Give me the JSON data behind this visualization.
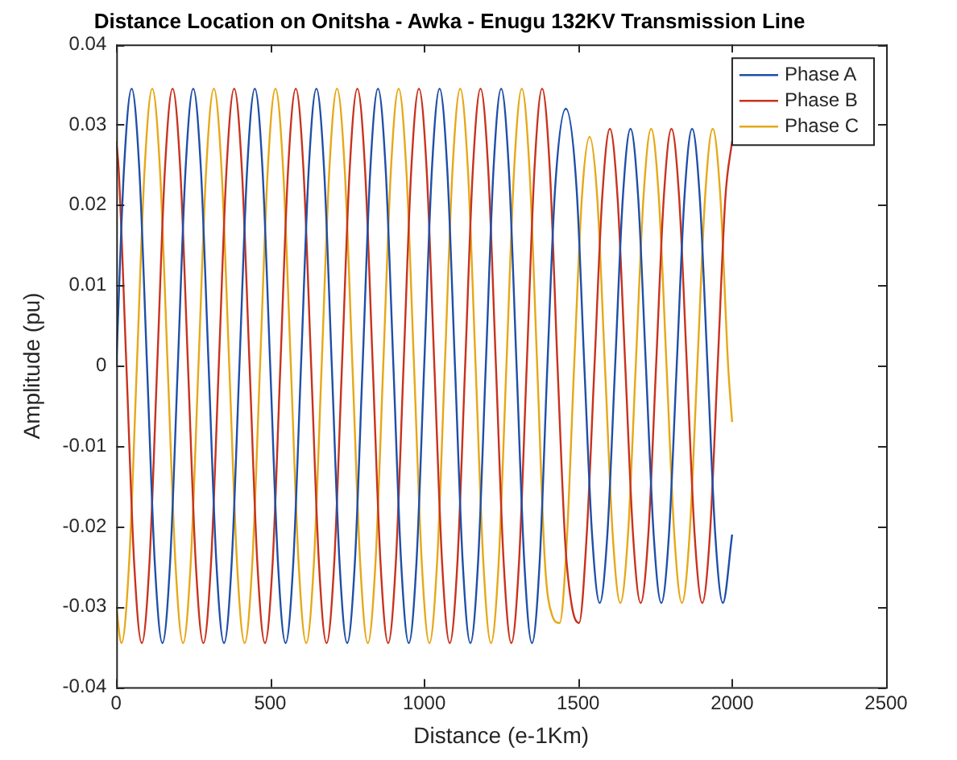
{
  "chart_data": {
    "type": "line",
    "title": "Distance Location on Onitsha - Awka - Enugu 132KV Transmission Line",
    "xlabel": "Distance (e-1Km)",
    "ylabel": "Amplitude (pu)",
    "xlim": [
      0,
      2500
    ],
    "xticks": [
      0,
      500,
      1000,
      1500,
      2000,
      2500
    ],
    "ylim": [
      -0.04,
      0.04
    ],
    "yticks": [
      -0.04,
      -0.03,
      -0.02,
      -0.01,
      0,
      0.01,
      0.02,
      0.03,
      0.04
    ],
    "grid": false,
    "legend": "top right",
    "series": [
      {
        "name": "Phase A",
        "color": "#1f4fa8",
        "x": [
          0,
          25,
          50,
          75,
          100,
          125,
          150,
          175,
          200,
          225,
          250,
          275,
          300,
          325,
          350,
          375,
          400,
          425,
          450,
          475,
          500,
          525,
          550,
          575,
          600,
          625,
          650,
          675,
          700,
          725,
          750,
          775,
          800,
          825,
          850,
          875,
          900,
          925,
          950,
          975,
          1000,
          1025,
          1050,
          1075,
          1100,
          1125,
          1150,
          1175,
          1200,
          1225,
          1250,
          1275,
          1300,
          1325,
          1350,
          1375,
          1400,
          1425,
          1460,
          1495,
          1520,
          1545,
          1570,
          1595,
          1620,
          1645,
          1670,
          1695,
          1720,
          1745,
          1770,
          1795,
          1820,
          1845,
          1870,
          1895,
          1920,
          1945,
          1970,
          2000
        ],
        "values": [
          0,
          0.0244,
          0.0345,
          0.0244,
          0,
          -0.0244,
          -0.0345,
          -0.0244,
          0,
          0.0244,
          0.0345,
          0.0244,
          0,
          -0.0244,
          -0.0345,
          -0.0244,
          0,
          0.0244,
          0.0345,
          0.0244,
          0,
          -0.0244,
          -0.0345,
          -0.0244,
          0,
          0.0244,
          0.0345,
          0.0244,
          0,
          -0.0244,
          -0.0345,
          -0.0244,
          0,
          0.0244,
          0.0345,
          0.0244,
          0,
          -0.0244,
          -0.0345,
          -0.0244,
          0,
          0.0244,
          0.0345,
          0.0244,
          0,
          -0.0244,
          -0.0345,
          -0.0244,
          0,
          0.0244,
          0.0345,
          0.0244,
          0,
          -0.0244,
          -0.0345,
          -0.0244,
          0,
          0.022,
          0.032,
          0.022,
          0,
          -0.0209,
          -0.0295,
          -0.0209,
          0,
          0.0209,
          0.0295,
          0.0209,
          0,
          -0.0209,
          -0.0295,
          -0.0209,
          0,
          0.0209,
          0.0295,
          0.0209,
          0,
          -0.0209,
          -0.0295,
          -0.021
        ]
      },
      {
        "name": "Phase B",
        "color": "#c8321e",
        "x": [
          0,
          8,
          33,
          58,
          83,
          108,
          133,
          158,
          183,
          208,
          233,
          258,
          283,
          308,
          333,
          358,
          383,
          408,
          433,
          458,
          483,
          508,
          533,
          558,
          583,
          608,
          633,
          658,
          683,
          708,
          733,
          758,
          783,
          808,
          833,
          858,
          883,
          908,
          933,
          958,
          983,
          1008,
          1033,
          1058,
          1083,
          1108,
          1133,
          1158,
          1183,
          1208,
          1233,
          1258,
          1283,
          1308,
          1333,
          1358,
          1383,
          1408,
          1433,
          1458,
          1480,
          1503,
          1528,
          1553,
          1578,
          1603,
          1628,
          1653,
          1678,
          1703,
          1728,
          1753,
          1778,
          1803,
          1828,
          1853,
          1878,
          1903,
          1928,
          1953,
          1978,
          2000
        ],
        "values": [
          0.028,
          0.0244,
          0,
          -0.0244,
          -0.0345,
          -0.0244,
          0,
          0.0244,
          0.0345,
          0.0244,
          0,
          -0.0244,
          -0.0345,
          -0.0244,
          0,
          0.0244,
          0.0345,
          0.0244,
          0,
          -0.0244,
          -0.0345,
          -0.0244,
          0,
          0.0244,
          0.0345,
          0.0244,
          0,
          -0.0244,
          -0.0345,
          -0.0244,
          0,
          0.0244,
          0.0345,
          0.0244,
          0,
          -0.0244,
          -0.0345,
          -0.0244,
          0,
          0.0244,
          0.0345,
          0.0244,
          0,
          -0.0244,
          -0.0345,
          -0.0244,
          0,
          0.0244,
          0.0345,
          0.0244,
          0,
          -0.0244,
          -0.0345,
          -0.0244,
          0,
          0.0244,
          0.0345,
          0.0244,
          0,
          -0.022,
          -0.03,
          -0.032,
          -0.0209,
          0,
          0.0209,
          0.0295,
          0.0209,
          0,
          -0.0209,
          -0.0295,
          -0.0209,
          0,
          0.0209,
          0.0295,
          0.0209,
          0,
          -0.0209,
          -0.0295,
          -0.0209,
          0,
          0.0209,
          0.028
        ]
      },
      {
        "name": "Phase C",
        "color": "#e6a817",
        "x": [
          0,
          17,
          42,
          67,
          92,
          117,
          142,
          167,
          192,
          217,
          242,
          267,
          292,
          317,
          342,
          367,
          392,
          417,
          442,
          467,
          492,
          517,
          542,
          567,
          592,
          617,
          642,
          667,
          692,
          717,
          742,
          767,
          792,
          817,
          842,
          867,
          892,
          917,
          942,
          967,
          992,
          1017,
          1042,
          1067,
          1092,
          1117,
          1142,
          1167,
          1192,
          1217,
          1242,
          1267,
          1292,
          1317,
          1342,
          1367,
          1392,
          1415,
          1440,
          1462,
          1487,
          1512,
          1537,
          1562,
          1587,
          1612,
          1637,
          1662,
          1687,
          1712,
          1737,
          1762,
          1787,
          1812,
          1837,
          1862,
          1887,
          1912,
          1937,
          1962,
          1987,
          2000
        ],
        "values": [
          -0.03,
          -0.0345,
          -0.0244,
          0,
          0.0244,
          0.0345,
          0.0244,
          0,
          -0.0244,
          -0.0345,
          -0.0244,
          0,
          0.0244,
          0.0345,
          0.0244,
          0,
          -0.0244,
          -0.0345,
          -0.0244,
          0,
          0.0244,
          0.0345,
          0.0244,
          0,
          -0.0244,
          -0.0345,
          -0.0244,
          0,
          0.0244,
          0.0345,
          0.0244,
          0,
          -0.0244,
          -0.0345,
          -0.0244,
          0,
          0.0244,
          0.0345,
          0.0244,
          0,
          -0.0244,
          -0.0345,
          -0.0244,
          0,
          0.0244,
          0.0345,
          0.0244,
          0,
          -0.0244,
          -0.0345,
          -0.0244,
          0,
          0.0244,
          0.0345,
          0.0244,
          0,
          -0.0244,
          -0.031,
          -0.032,
          -0.0226,
          0,
          0.0209,
          0.0285,
          0.0209,
          0,
          -0.0209,
          -0.0295,
          -0.0209,
          0,
          0.0209,
          0.0295,
          0.0209,
          0,
          -0.0209,
          -0.0295,
          -0.0209,
          0,
          0.0209,
          0.0295,
          0.0209,
          0,
          -0.007
        ]
      }
    ]
  }
}
